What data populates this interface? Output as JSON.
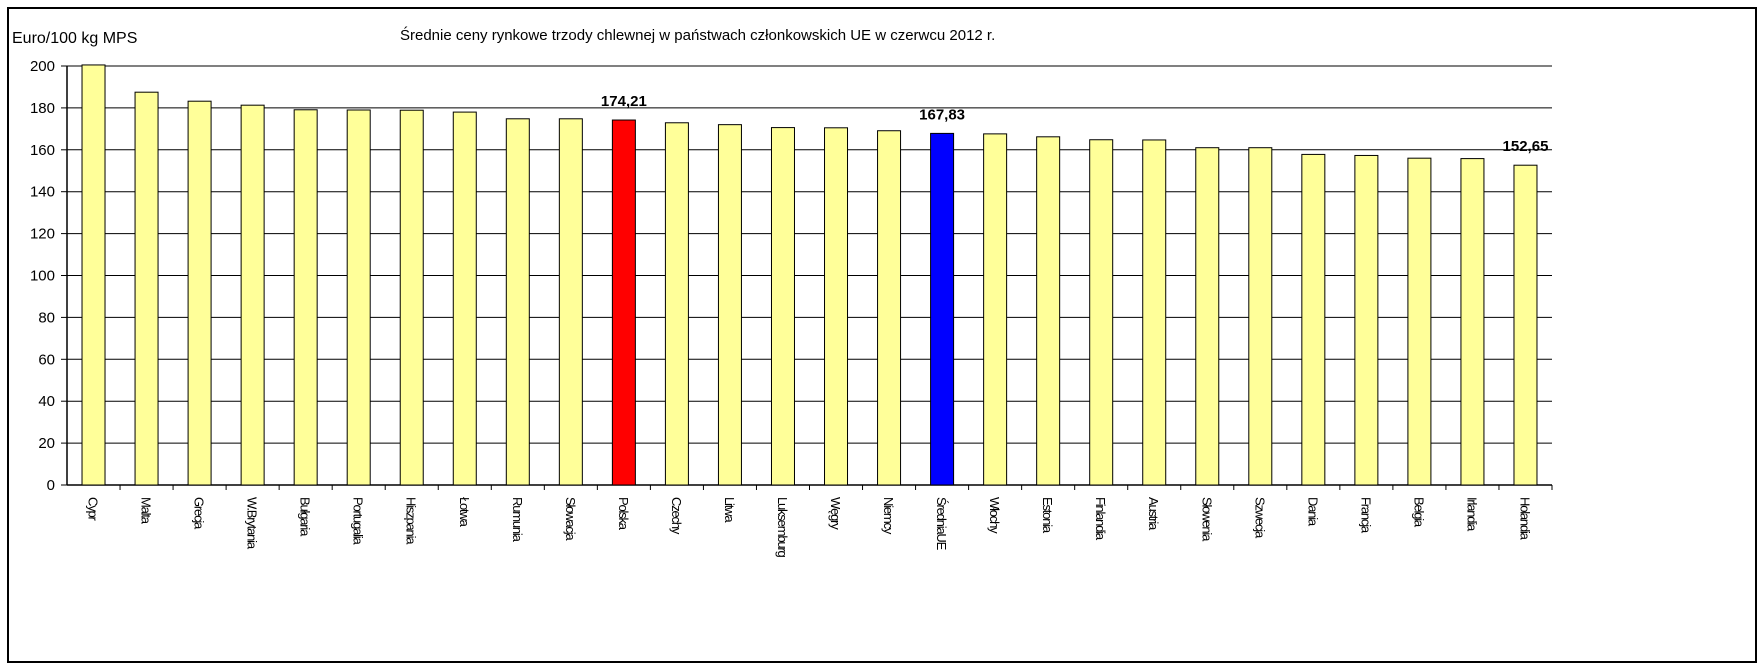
{
  "chart_data": {
    "type": "bar",
    "title": "Średnie ceny rynkowe trzody chlewnej w państwach członkowskich UE w czerwcu 2012 r.",
    "ylabel": "Euro/100 kg MPS",
    "ylim": [
      0,
      200
    ],
    "yticks": [
      0,
      20,
      40,
      60,
      80,
      100,
      120,
      140,
      160,
      180,
      200
    ],
    "grid": true,
    "categories": [
      "Cypr",
      "Malta",
      "Grecja",
      "W.Brytania",
      "Bułgaria",
      "Portugalia",
      "Hiszpania",
      "Łotwa",
      "Rumunia",
      "Słowacja",
      "Polska",
      "Czechy",
      "Litwa",
      "Luksemburg",
      "Węgry",
      "Niemcy",
      "ŚredniaUE",
      "Włochy",
      "Estonia",
      "Finlandia",
      "Austria",
      "Słowenia",
      "Szwecja",
      "Dania",
      "Francja",
      "Belgia",
      "Irlandia",
      "Holandia"
    ],
    "values": [
      200.5,
      187.5,
      183.2,
      181.3,
      179.1,
      179.0,
      178.9,
      178.0,
      174.8,
      174.8,
      174.21,
      172.9,
      172.0,
      170.6,
      170.5,
      169.1,
      167.83,
      167.6,
      166.2,
      164.8,
      164.7,
      161.0,
      161.0,
      157.8,
      157.3,
      156.0,
      155.8,
      152.65
    ],
    "data_labels": [
      "",
      "",
      "",
      "",
      "",
      "",
      "",
      "",
      "",
      "",
      "174,21",
      "",
      "",
      "",
      "",
      "",
      "167,83",
      "",
      "",
      "",
      "",
      "",
      "",
      "",
      "",
      "",
      "",
      "152,65"
    ],
    "colors": {
      "default": "#ffff99",
      "highlight_polska": "#ff0000",
      "highlight_srednia": "#0000ff",
      "bar_outline": "#000000",
      "grid": "#000000"
    },
    "highlights": {
      "Polska": "#ff0000",
      "ŚredniaUE": "#0000ff"
    }
  }
}
